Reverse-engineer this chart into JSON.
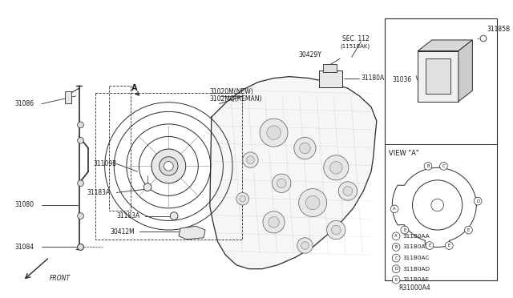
{
  "bg_color": "#ffffff",
  "line_color": "#2a2a2a",
  "text_color": "#1a1a1a",
  "fig_width": 6.4,
  "fig_height": 3.72,
  "dpi": 100,
  "diagram_ref": "R31000A4",
  "view_a_legend": [
    [
      "A",
      "311B0AA"
    ],
    [
      "B",
      "311B0AB"
    ],
    [
      "C",
      "311B0AC"
    ],
    [
      "D",
      "311B0AD"
    ],
    [
      "E",
      "311B0AE"
    ]
  ]
}
